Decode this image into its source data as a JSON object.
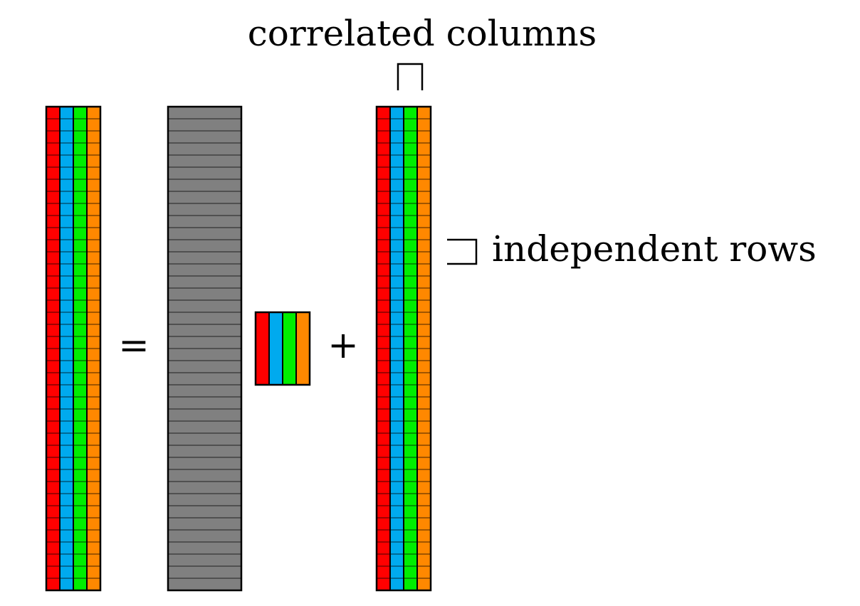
{
  "labels": {
    "top": "correlated columns",
    "right": "independent rows",
    "equals": "=",
    "plus": "+"
  },
  "colors": {
    "red": "#ff0000",
    "blue": "#00aaee",
    "green": "#00ee00",
    "orange": "#ff8800",
    "gray": "#808080",
    "stroke": "#000000"
  },
  "matrix": {
    "columns": [
      "red",
      "blue",
      "green",
      "orange"
    ],
    "rows": 40
  }
}
